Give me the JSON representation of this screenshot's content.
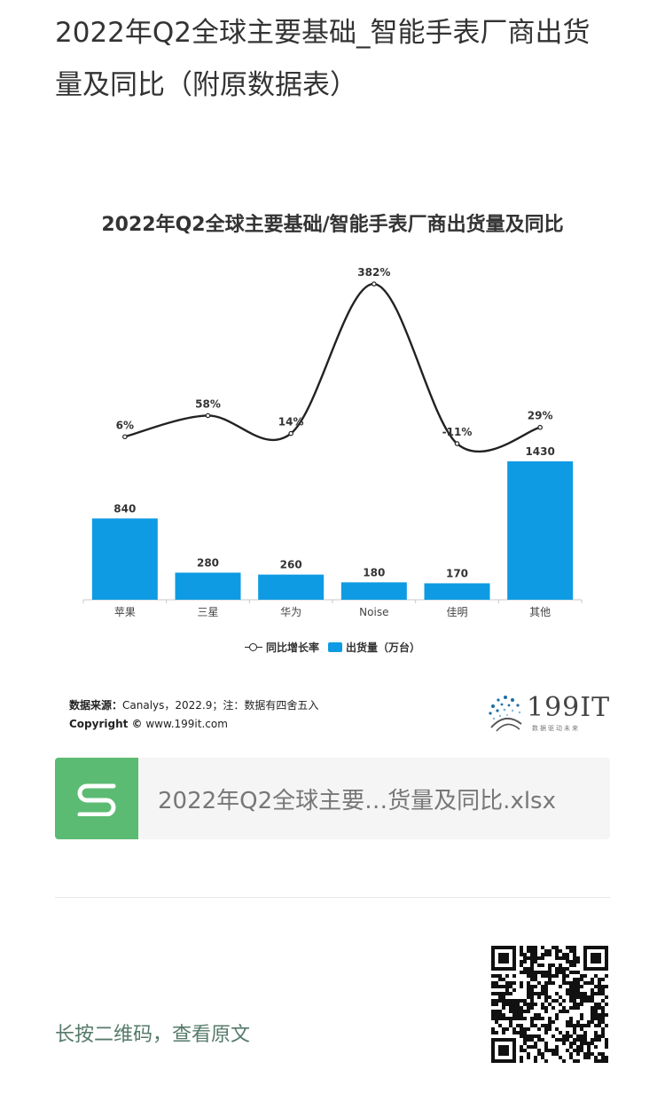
{
  "article": {
    "title": "2022年Q2全球主要基础_智能手表厂商出货量及同比（附原数据表）"
  },
  "chart": {
    "title": "2022年Q2全球主要基础/智能手表厂商出货量及同比",
    "legend_line_label": "同比增长率",
    "legend_bar_label": "出货量（万台）",
    "source_label": "数据来源：",
    "source_text": "Canalys，2022.9；注：数据有四舍五入",
    "copyright_label": "Copyright ©",
    "copyright_text": " www.199it.com",
    "logo_text": "199IT",
    "logo_slogan": "数据驱动未来",
    "colors": {
      "bar": "#0f9be3",
      "line": "#222222"
    }
  },
  "chart_data": {
    "type": "bar",
    "title": "2022年Q2全球主要基础/智能手表厂商出货量及同比",
    "categories": [
      "苹果",
      "三星",
      "华为",
      "Noise",
      "佳明",
      "其他"
    ],
    "series": [
      {
        "name": "出货量（万台）",
        "type": "bar",
        "values": [
          840,
          280,
          260,
          180,
          170,
          1430
        ]
      },
      {
        "name": "同比增长率",
        "type": "line",
        "values": [
          6,
          58,
          14,
          382,
          -11,
          29
        ],
        "labels": [
          "6%",
          "58%",
          "14%",
          "382%",
          "-11%",
          "29%"
        ]
      }
    ],
    "grid": false,
    "legend_position": "bottom"
  },
  "attachment": {
    "icon": "spreadsheet-icon",
    "file_name": "2022年Q2全球主要…货量及同比.xlsx"
  },
  "footer": {
    "qr_hint": "长按二维码，查看原文",
    "qr_icon": "qr-code-icon"
  }
}
